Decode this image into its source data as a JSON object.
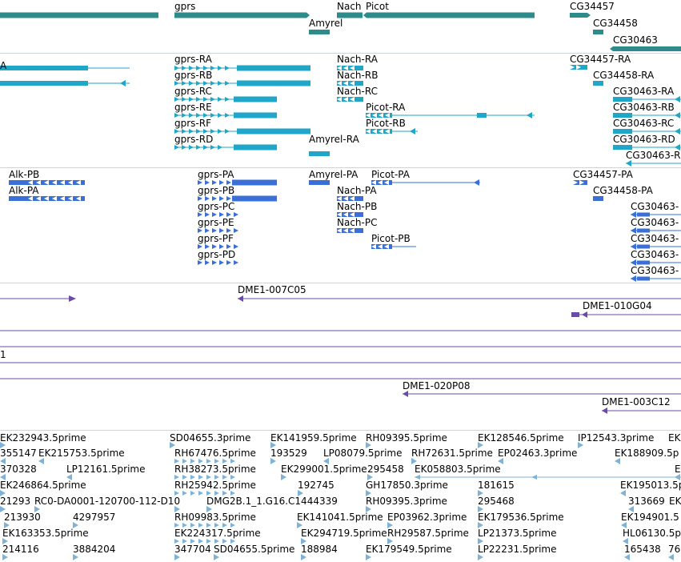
{
  "colors": {
    "gene": "#2e8b8b",
    "mrna": "#1fa6c8",
    "protein": "#3a6fd8",
    "clone": "#6a4ca8",
    "est": "#7fb2d6"
  },
  "tracks": {
    "genes": [
      {
        "label": "gprs"
      },
      {
        "label": "Nach"
      },
      {
        "label": "Picot"
      },
      {
        "label": "Amyrel"
      },
      {
        "label": "CG34457"
      },
      {
        "label": "CG34458"
      },
      {
        "label": "CG30463"
      }
    ],
    "transcripts": [
      {
        "label": "gprs-RA"
      },
      {
        "label": "gprs-RB"
      },
      {
        "label": "gprs-RC"
      },
      {
        "label": "gprs-RE"
      },
      {
        "label": "gprs-RF"
      },
      {
        "label": "gprs-RD"
      },
      {
        "label": "Nach-RA"
      },
      {
        "label": "Nach-RB"
      },
      {
        "label": "Nach-RC"
      },
      {
        "label": "Picot-RA"
      },
      {
        "label": "Picot-RB"
      },
      {
        "label": "Amyrel-RA"
      },
      {
        "label": "CG34457-RA"
      },
      {
        "label": "CG34458-RA"
      },
      {
        "label": "CG30463-RA"
      },
      {
        "label": "CG30463-RB"
      },
      {
        "label": "CG30463-RC"
      },
      {
        "label": "CG30463-RD"
      },
      {
        "label": "CG30463-R"
      },
      {
        "label": "A"
      }
    ],
    "proteins": [
      {
        "label": "Alk-PB"
      },
      {
        "label": "Alk-PA"
      },
      {
        "label": "gprs-PA"
      },
      {
        "label": "gprs-PB"
      },
      {
        "label": "gprs-PC"
      },
      {
        "label": "gprs-PE"
      },
      {
        "label": "gprs-PF"
      },
      {
        "label": "gprs-PD"
      },
      {
        "label": "Amyrel-PA"
      },
      {
        "label": "Picot-PA"
      },
      {
        "label": "Nach-PA"
      },
      {
        "label": "Nach-PB"
      },
      {
        "label": "Nach-PC"
      },
      {
        "label": "Picot-PB"
      },
      {
        "label": "CG34457-PA"
      },
      {
        "label": "CG34458-PA"
      },
      {
        "label": "CG30463-"
      },
      {
        "label": "CG30463-"
      },
      {
        "label": "CG30463-"
      },
      {
        "label": "CG30463-"
      },
      {
        "label": "CG30463-"
      }
    ],
    "clones": [
      {
        "label": "DME1-007C05"
      },
      {
        "label": "DME1-010G04"
      },
      {
        "label": "1"
      },
      {
        "label": "DME1-020P08"
      },
      {
        "label": "DME1-003C12"
      }
    ],
    "ests": [
      {
        "label": "EK232943.5prime"
      },
      {
        "label": "SD04655.3prime"
      },
      {
        "label": "EK141959.5prime"
      },
      {
        "label": "RH09395.5prime"
      },
      {
        "label": "EK128546.5prime"
      },
      {
        "label": "IP12543.3prime"
      },
      {
        "label": "EK"
      },
      {
        "label": "355147"
      },
      {
        "label": "EK215753.5prime"
      },
      {
        "label": "RH67476.5prime"
      },
      {
        "label": "193529"
      },
      {
        "label": "LP08079.5prime"
      },
      {
        "label": "RH72631.5prime"
      },
      {
        "label": "EP02463.3prime"
      },
      {
        "label": "EK188909.5p"
      },
      {
        "label": "370328"
      },
      {
        "label": "LP12161.5prime"
      },
      {
        "label": "RH38273.5prime"
      },
      {
        "label": "EK299001.5prime"
      },
      {
        "label": "295458"
      },
      {
        "label": "EK058803.5prime"
      },
      {
        "label": "E"
      },
      {
        "label": "EK246864.5prime"
      },
      {
        "label": "RH25942.5prime"
      },
      {
        "label": "192745"
      },
      {
        "label": "GH17850.3prime"
      },
      {
        "label": "181615"
      },
      {
        "label": "EK195013.5p"
      },
      {
        "label": "21293"
      },
      {
        "label": "RC0-DA0001-120700-112-D10"
      },
      {
        "label": "DMG2B.1_1.G16.C1444339"
      },
      {
        "label": "RH09395.3prime"
      },
      {
        "label": "295468"
      },
      {
        "label": "313669"
      },
      {
        "label": "EK"
      },
      {
        "label": "213930"
      },
      {
        "label": "4297957"
      },
      {
        "label": "RH09983.5prime"
      },
      {
        "label": "EK141041.5prime"
      },
      {
        "label": "EP03962.3prime"
      },
      {
        "label": "EK179536.5prime"
      },
      {
        "label": "EK194901.5"
      },
      {
        "label": "EK163353.5prime"
      },
      {
        "label": "EK224317.5prime"
      },
      {
        "label": "EK294719.5prime"
      },
      {
        "label": "RH29587.5prime"
      },
      {
        "label": "LP21373.5prime"
      },
      {
        "label": "HL06130.5p"
      },
      {
        "label": "214116"
      },
      {
        "label": "3884204"
      },
      {
        "label": "347704"
      },
      {
        "label": "SD04655.5prime"
      },
      {
        "label": "188984"
      },
      {
        "label": "EK179549.5prime"
      },
      {
        "label": "LP22231.5prime"
      },
      {
        "label": "165438"
      },
      {
        "label": "76"
      }
    ]
  }
}
